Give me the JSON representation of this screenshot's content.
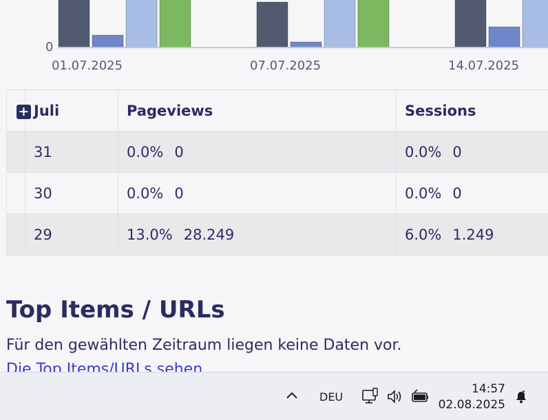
{
  "chart_data": {
    "type": "bar",
    "x_tick_labels": [
      "01.07.2025",
      "07.07.2025",
      "14.07.2025"
    ],
    "y_tick_labels": [
      "0"
    ],
    "series_colors": [
      "#525a70",
      "#6f86c8",
      "#a8bde6",
      "#7bb860"
    ],
    "groups": [
      {
        "x": "01.07.2025",
        "values": [
          null,
          18,
          null,
          null
        ]
      },
      {
        "x": "07.07.2025",
        "values": [
          66,
          8,
          null,
          null
        ]
      },
      {
        "x": "14.07.2025",
        "values": [
          null,
          30,
          null,
          null
        ]
      }
    ],
    "visible_note": "bar tops cut off at the top of the viewport"
  },
  "table": {
    "headers": {
      "day": "Juli",
      "pageviews": "Pageviews",
      "sessions": "Sessions"
    },
    "rows": [
      {
        "day": "31",
        "pv_pct": "0.0%",
        "pv_val": "0",
        "s_pct": "0.0%",
        "s_val": "0"
      },
      {
        "day": "30",
        "pv_pct": "0.0%",
        "pv_val": "0",
        "s_pct": "0.0%",
        "s_val": "0"
      },
      {
        "day": "29",
        "pv_pct": "13.0%",
        "pv_val": "28.249",
        "s_pct": "6.0%",
        "s_val": "1.249"
      }
    ]
  },
  "section": {
    "title": "Top Items / URLs",
    "no_data": "Für den gewählten Zeitraum liegen keine Daten vor.",
    "link": "Die Top Items/URLs sehen"
  },
  "taskbar": {
    "language": "DEU",
    "time": "14:57",
    "date": "02.08.2025",
    "icons": [
      "chevron-up-icon",
      "network-icon",
      "volume-icon",
      "battery-icon",
      "notification-bell-icon"
    ]
  },
  "colors": {
    "text": "#2c2c60",
    "page_bg": "#f6f6f9",
    "row_shaded": "#e9e9ec",
    "link": "#3a3acc"
  }
}
